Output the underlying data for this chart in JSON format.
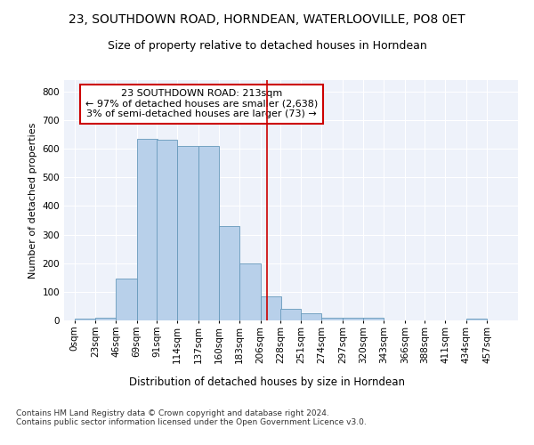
{
  "title1": "23, SOUTHDOWN ROAD, HORNDEAN, WATERLOOVILLE, PO8 0ET",
  "title2": "Size of property relative to detached houses in Horndean",
  "xlabel": "Distribution of detached houses by size in Horndean",
  "ylabel": "Number of detached properties",
  "footnote": "Contains HM Land Registry data © Crown copyright and database right 2024.\nContains public sector information licensed under the Open Government Licence v3.0.",
  "bin_width": 23,
  "bin_starts": [
    0,
    23,
    46,
    69,
    91,
    114,
    137,
    160,
    183,
    206,
    228,
    251,
    274,
    297,
    320,
    343,
    366,
    388,
    411,
    434,
    457
  ],
  "bar_heights": [
    5,
    10,
    145,
    635,
    630,
    610,
    610,
    330,
    200,
    83,
    40,
    25,
    10,
    10,
    10,
    0,
    0,
    0,
    0,
    5,
    0
  ],
  "bar_color": "#b8d0ea",
  "bar_edge_color": "#6699bb",
  "property_size": 213,
  "vline_color": "#cc0000",
  "annotation_text": "23 SOUTHDOWN ROAD: 213sqm\n← 97% of detached houses are smaller (2,638)\n3% of semi-detached houses are larger (73) →",
  "annotation_box_color": "#ffffff",
  "annotation_box_edge": "#cc0000",
  "ylim": [
    0,
    840
  ],
  "yticks": [
    0,
    100,
    200,
    300,
    400,
    500,
    600,
    700,
    800
  ],
  "bg_color": "#eef2fa",
  "grid_color": "#ffffff",
  "title1_fontsize": 10,
  "title2_fontsize": 9,
  "axis_label_fontsize": 8.5,
  "tick_fontsize": 7.5,
  "annot_fontsize": 8,
  "ylabel_fontsize": 8
}
